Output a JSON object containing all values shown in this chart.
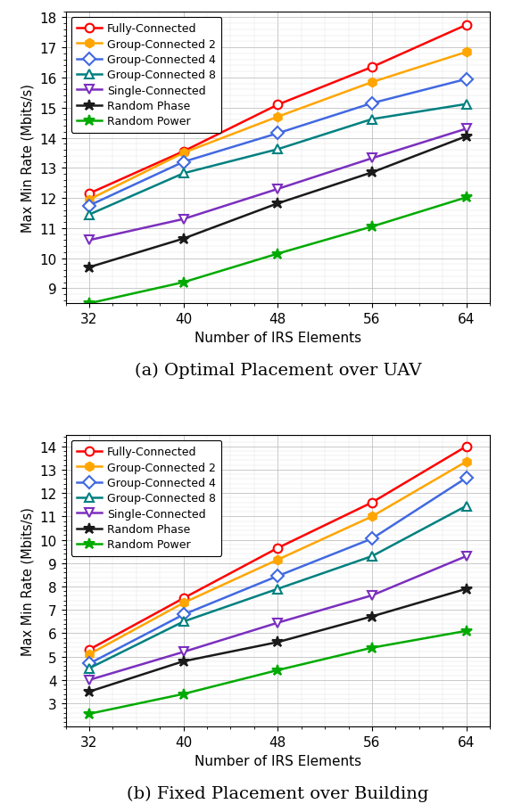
{
  "x": [
    32,
    40,
    48,
    56,
    64
  ],
  "subplot_a": {
    "title": "(a) Optimal Placement over UAV",
    "ylabel": "Max Min Rate (Mbits/s)",
    "xlabel": "Number of IRS Elements",
    "ylim": [
      8.5,
      18.2
    ],
    "yticks": [
      9,
      10,
      11,
      12,
      13,
      14,
      15,
      16,
      17,
      18
    ],
    "series": [
      {
        "label": "Fully-Connected",
        "color": "#FF0000",
        "marker": "o",
        "mfc": "white",
        "values": [
          12.15,
          13.55,
          15.1,
          16.35,
          17.75
        ]
      },
      {
        "label": "Group-Connected 2",
        "color": "#FFA500",
        "marker": "h",
        "mfc": "#FFA500",
        "values": [
          11.95,
          13.5,
          14.7,
          15.85,
          16.85
        ]
      },
      {
        "label": "Group-Connected 4",
        "color": "#4169E1",
        "marker": "D",
        "mfc": "white",
        "values": [
          11.75,
          13.2,
          14.15,
          15.15,
          15.95
        ]
      },
      {
        "label": "Group-Connected 8",
        "color": "#008080",
        "marker": "^",
        "mfc": "white",
        "values": [
          11.45,
          12.82,
          13.62,
          14.62,
          15.12
        ]
      },
      {
        "label": "Single-Connected",
        "color": "#7B2FBE",
        "marker": "v",
        "mfc": "white",
        "values": [
          10.6,
          11.3,
          12.3,
          13.32,
          14.3
        ]
      },
      {
        "label": "Random Phase",
        "color": "#1a1a1a",
        "marker": "*",
        "mfc": "#1a1a1a",
        "values": [
          9.7,
          10.65,
          11.82,
          12.85,
          14.05
        ]
      },
      {
        "label": "Random Power",
        "color": "#00AA00",
        "marker": "*",
        "mfc": "#00AA00",
        "values": [
          8.5,
          9.2,
          10.15,
          11.05,
          12.02
        ]
      }
    ]
  },
  "subplot_b": {
    "title": "(b) Fixed Placement over Building",
    "ylabel": "Max Min Rate (Mbits/s)",
    "xlabel": "Number of IRS Elements",
    "ylim": [
      2.0,
      14.5
    ],
    "yticks": [
      3,
      4,
      5,
      6,
      7,
      8,
      9,
      10,
      11,
      12,
      13,
      14
    ],
    "series": [
      {
        "label": "Fully-Connected",
        "color": "#FF0000",
        "marker": "o",
        "mfc": "white",
        "values": [
          5.3,
          7.5,
          9.65,
          11.6,
          14.0
        ]
      },
      {
        "label": "Group-Connected 2",
        "color": "#FFA500",
        "marker": "h",
        "mfc": "#FFA500",
        "values": [
          5.1,
          7.3,
          9.15,
          11.0,
          13.35
        ]
      },
      {
        "label": "Group-Connected 4",
        "color": "#4169E1",
        "marker": "D",
        "mfc": "white",
        "values": [
          4.7,
          6.8,
          8.45,
          10.05,
          12.65
        ]
      },
      {
        "label": "Group-Connected 8",
        "color": "#008080",
        "marker": "^",
        "mfc": "white",
        "values": [
          4.5,
          6.5,
          7.9,
          9.3,
          11.45
        ]
      },
      {
        "label": "Single-Connected",
        "color": "#7B2FBE",
        "marker": "v",
        "mfc": "white",
        "values": [
          4.0,
          5.2,
          6.45,
          7.62,
          9.3
        ]
      },
      {
        "label": "Random Phase",
        "color": "#1a1a1a",
        "marker": "*",
        "mfc": "#1a1a1a",
        "values": [
          3.5,
          4.8,
          5.62,
          6.72,
          7.9
        ]
      },
      {
        "label": "Random Power",
        "color": "#00AA00",
        "marker": "*",
        "mfc": "#00AA00",
        "values": [
          2.55,
          3.4,
          4.42,
          5.38,
          6.1
        ]
      }
    ]
  }
}
